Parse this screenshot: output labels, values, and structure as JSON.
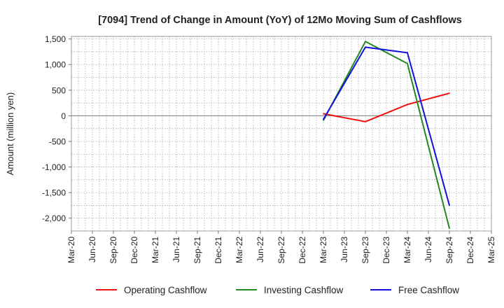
{
  "chart_data": {
    "type": "line",
    "title": "[7094]  Trend of Change in Amount (YoY) of 12Mo Moving Sum of Cashflows",
    "xlabel": "",
    "ylabel": "Amount (million yen)",
    "categories": [
      "Mar-20",
      "Jun-20",
      "Sep-20",
      "Dec-20",
      "Mar-21",
      "Jun-21",
      "Sep-21",
      "Dec-21",
      "Mar-22",
      "Jun-22",
      "Sep-22",
      "Dec-22",
      "Mar-23",
      "Jun-23",
      "Sep-23",
      "Dec-23",
      "Mar-24",
      "Jun-24",
      "Sep-24",
      "Dec-24",
      "Mar-25"
    ],
    "ylim": [
      -2250,
      1550
    ],
    "yticks": [
      1500,
      1000,
      500,
      0,
      -500,
      -1000,
      -1500,
      -2000
    ],
    "ytick_labels": [
      "1,500",
      "1,000",
      "500",
      "0",
      "-500",
      "-1,000",
      "-1,500",
      "-2,000"
    ],
    "grid": true,
    "legend_position": "bottom",
    "series": [
      {
        "name": "Operating Cashflow",
        "color": "#ee1111",
        "values": [
          null,
          null,
          null,
          null,
          null,
          null,
          null,
          null,
          null,
          null,
          null,
          null,
          40,
          null,
          -115,
          null,
          220,
          null,
          440,
          null,
          null
        ]
      },
      {
        "name": "Investing Cashflow",
        "color": "#228822",
        "values": [
          null,
          null,
          null,
          null,
          null,
          null,
          null,
          null,
          null,
          null,
          null,
          null,
          -90,
          null,
          1450,
          null,
          1020,
          null,
          -2200,
          null,
          null
        ]
      },
      {
        "name": "Free Cashflow",
        "color": "#1111dd",
        "values": [
          null,
          null,
          null,
          null,
          null,
          null,
          null,
          null,
          null,
          null,
          null,
          null,
          -70,
          null,
          1340,
          null,
          1230,
          null,
          -1750,
          null,
          null
        ]
      }
    ]
  }
}
